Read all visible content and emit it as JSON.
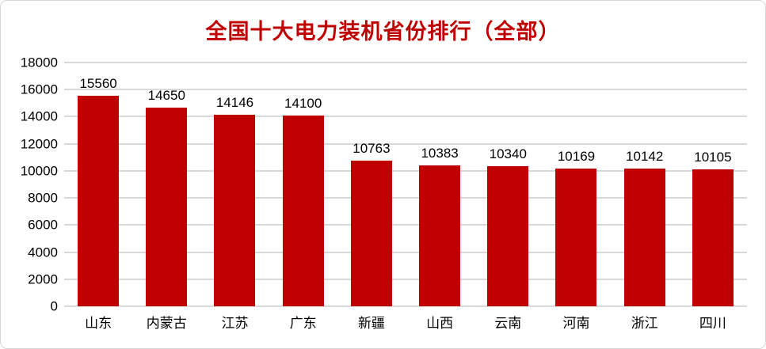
{
  "chart_data": {
    "type": "bar",
    "title": "全国十大电力装机省份排行（全部）",
    "categories": [
      "山东",
      "内蒙古",
      "江苏",
      "广东",
      "新疆",
      "山西",
      "云南",
      "河南",
      "浙江",
      "四川"
    ],
    "values": [
      15560,
      14650,
      14146,
      14100,
      10763,
      10383,
      10340,
      10169,
      10142,
      10105
    ],
    "xlabel": "",
    "ylabel": "",
    "ylim": [
      0,
      18000
    ],
    "ytick_step": 2000,
    "ytick_labels": [
      "0",
      "2000",
      "4000",
      "6000",
      "8000",
      "10000",
      "12000",
      "14000",
      "16000",
      "18000"
    ],
    "grid": "horizontal",
    "legend": "none",
    "data_labels": "above-bars",
    "colors": {
      "bar": "#c00000",
      "title": "#c00000",
      "axis_text": "#000000",
      "gridline": "#d9d9d9",
      "background": "#ffffff",
      "frame_border": "#d7d7d7"
    }
  }
}
